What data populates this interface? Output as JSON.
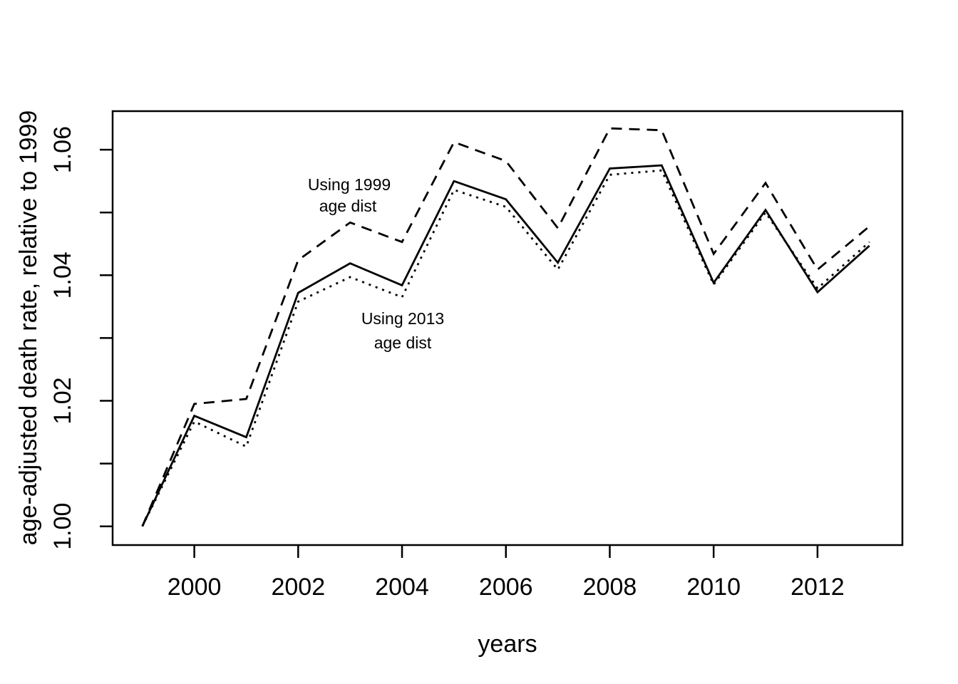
{
  "chart_data": {
    "type": "line",
    "x": [
      1999,
      2000,
      2001,
      2002,
      2003,
      2004,
      2005,
      2006,
      2007,
      2008,
      2009,
      2010,
      2011,
      2012,
      2013
    ],
    "series": [
      {
        "name": "Using 1999 age dist",
        "line_style": "dashed",
        "values": [
          1.0,
          1.0195,
          1.0203,
          1.0424,
          1.0484,
          1.0453,
          1.0612,
          1.0582,
          1.0475,
          1.0634,
          1.0631,
          1.0434,
          1.0547,
          1.0409,
          1.0478
        ]
      },
      {
        "name": "",
        "line_style": "solid",
        "values": [
          1.0,
          1.0176,
          1.0142,
          1.0372,
          1.0419,
          1.0384,
          1.055,
          1.0521,
          1.042,
          1.057,
          1.0575,
          1.0388,
          1.0504,
          1.0373,
          1.0447
        ]
      },
      {
        "name": "Using 2013 age dist",
        "line_style": "dotted",
        "values": [
          1.0,
          1.0167,
          1.0127,
          1.0358,
          1.0397,
          1.0365,
          1.0536,
          1.0509,
          1.0409,
          1.056,
          1.0567,
          1.0385,
          1.05,
          1.0379,
          1.0453
        ]
      }
    ],
    "xlabel": "years",
    "ylabel": "age-adjusted death rate, relative to 1999",
    "x_ticks": [
      {
        "value": 2000,
        "label": "2000"
      },
      {
        "value": 2002,
        "label": "2002"
      },
      {
        "value": 2004,
        "label": "2004"
      },
      {
        "value": 2006,
        "label": "2006"
      },
      {
        "value": 2008,
        "label": "2008"
      },
      {
        "value": 2010,
        "label": "2010"
      },
      {
        "value": 2012,
        "label": "2012"
      }
    ],
    "y_ticks": [
      {
        "value": 1.0,
        "label": "1.00"
      },
      {
        "value": 1.01,
        "label": ""
      },
      {
        "value": 1.02,
        "label": "1.02"
      },
      {
        "value": 1.03,
        "label": ""
      },
      {
        "value": 1.04,
        "label": "1.04"
      },
      {
        "value": 1.05,
        "label": ""
      },
      {
        "value": 1.06,
        "label": "1.06"
      }
    ],
    "xlim": [
      1998.44,
      2013.56
    ],
    "ylim": [
      0.9971,
      1.0661
    ],
    "grid": false,
    "legend_position": "none",
    "annotations": [
      {
        "line1": "Using 1999",
        "line2": "age dist",
        "refers_to": "dashed series"
      },
      {
        "line1": "Using 2013",
        "line2": "age dist",
        "refers_to": "dotted series"
      }
    ],
    "colors": {
      "foreground": "#000000",
      "background": "#ffffff"
    }
  }
}
